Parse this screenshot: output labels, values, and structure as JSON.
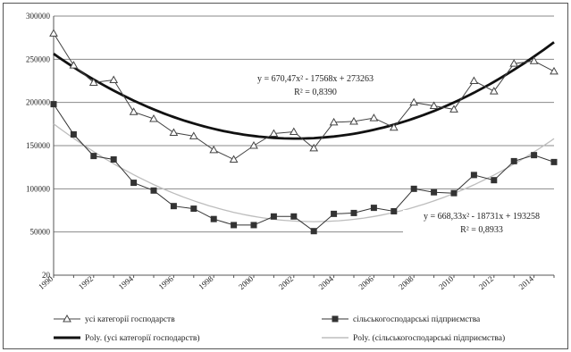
{
  "chart_data": {
    "type": "line",
    "title": "",
    "xlabel": "",
    "ylabel": "",
    "ylim": [
      20,
      300000
    ],
    "x_range": [
      1990,
      2015
    ],
    "y_ticks": [
      "300000",
      "250000",
      "200000",
      "150000",
      "100000",
      "50000",
      "20"
    ],
    "x_ticks": [
      "1990",
      "1992",
      "1994",
      "1996",
      "1998",
      "2000",
      "2002",
      "2004",
      "2006",
      "2008",
      "2010",
      "2012",
      "2014"
    ],
    "x_tick_values": [
      1990,
      1992,
      1994,
      1996,
      1998,
      2000,
      2002,
      2004,
      2006,
      2008,
      2010,
      2012,
      2014
    ],
    "grid": "horizontal",
    "legend_position": "bottom",
    "x": [
      1990,
      1991,
      1992,
      1993,
      1994,
      1995,
      1996,
      1997,
      1998,
      1999,
      2000,
      2001,
      2002,
      2003,
      2004,
      2005,
      2006,
      2007,
      2008,
      2009,
      2010,
      2011,
      2012,
      2013,
      2014,
      2015
    ],
    "series": [
      {
        "name": "усі категорії господарств",
        "marker": "triangle",
        "color": "#444444",
        "values": [
          280000,
          243000,
          223000,
          226000,
          189000,
          181000,
          165000,
          161000,
          145000,
          134000,
          150000,
          164000,
          166000,
          147000,
          177000,
          178000,
          182000,
          171000,
          200000,
          196000,
          192000,
          225000,
          213000,
          245000,
          248000,
          236000
        ]
      },
      {
        "name": "сільськогосподарські підприємства",
        "marker": "square",
        "color": "#333333",
        "values": [
          198000,
          163000,
          138000,
          134000,
          107000,
          98000,
          80000,
          77000,
          65000,
          58000,
          58000,
          68000,
          68000,
          51000,
          71000,
          72000,
          78000,
          74000,
          100000,
          96000,
          95000,
          116000,
          110000,
          132000,
          139000,
          131000
        ]
      }
    ],
    "trendlines": [
      {
        "name": "Poly. (усі категорії господарств)",
        "color": "#111111",
        "a": 670.47,
        "b": -17568,
        "c": 273263,
        "equation": "y = 670,47x² - 17568x + 273263",
        "r2": "R² = 0,8390"
      },
      {
        "name": "Poly. (сільськогосподарські підприємства)",
        "color": "#bdbdbd",
        "a": 668.33,
        "b": -18731,
        "c": 193258,
        "equation": "y = 668,33x² - 18731x + 193258",
        "r2": "R² = 0,8933"
      }
    ]
  }
}
